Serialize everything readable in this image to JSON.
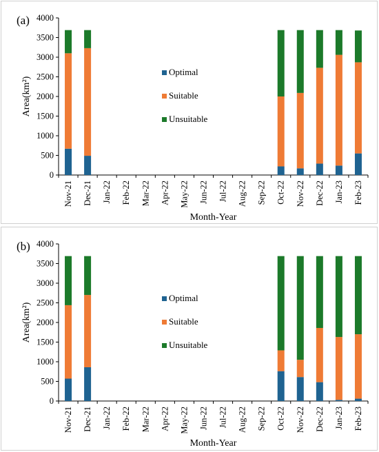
{
  "chart_data": [
    {
      "panel_label": "(a)",
      "type": "bar",
      "stacked": true,
      "categories": [
        "Nov-21",
        "Dec-21",
        "Jan-22",
        "Feb-22",
        "Mar-22",
        "Apr-22",
        "May-22",
        "Jun-22",
        "Jul-22",
        "Aug-22",
        "Sep-22",
        "Oct-22",
        "Nov-22",
        "Dec-22",
        "Jan-23",
        "Feb-23"
      ],
      "series": [
        {
          "name": "Optimal",
          "color": "#1f6391",
          "values": [
            670,
            490,
            0,
            0,
            0,
            0,
            0,
            0,
            0,
            0,
            0,
            220,
            170,
            290,
            240,
            550
          ]
        },
        {
          "name": "Suitable",
          "color": "#ef7b35",
          "values": [
            2430,
            2740,
            0,
            0,
            0,
            0,
            0,
            0,
            0,
            0,
            0,
            1780,
            1920,
            2440,
            2820,
            2320
          ]
        },
        {
          "name": "Unsuitable",
          "color": "#1c7a2a",
          "values": [
            590,
            460,
            0,
            0,
            0,
            0,
            0,
            0,
            0,
            0,
            0,
            1690,
            1600,
            960,
            630,
            810
          ]
        }
      ],
      "xlabel": "Month-Year",
      "ylabel": "Area(km²)",
      "ylim": [
        0,
        4000
      ],
      "yticks": [
        "0",
        "500",
        "1000",
        "1500",
        "2000",
        "2500",
        "3000",
        "3500",
        "4000"
      ],
      "grid": false,
      "legend_position": "center-left"
    },
    {
      "panel_label": "(b)",
      "type": "bar",
      "stacked": true,
      "categories": [
        "Nov-21",
        "Dec-21",
        "Jan-22",
        "Feb-22",
        "Mar-22",
        "Apr-22",
        "May-22",
        "Jun-22",
        "Jul-22",
        "Aug-22",
        "Sep-22",
        "Oct-22",
        "Nov-22",
        "Dec-22",
        "Jan-23",
        "Feb-23"
      ],
      "series": [
        {
          "name": "Optimal",
          "color": "#1f6391",
          "values": [
            570,
            860,
            0,
            0,
            0,
            0,
            0,
            0,
            0,
            0,
            0,
            760,
            610,
            480,
            30,
            60
          ]
        },
        {
          "name": "Suitable",
          "color": "#ef7b35",
          "values": [
            1870,
            1840,
            0,
            0,
            0,
            0,
            0,
            0,
            0,
            0,
            0,
            530,
            440,
            1380,
            1600,
            1640
          ]
        },
        {
          "name": "Unsuitable",
          "color": "#1c7a2a",
          "values": [
            1250,
            990,
            0,
            0,
            0,
            0,
            0,
            0,
            0,
            0,
            0,
            2400,
            2640,
            1830,
            2060,
            1990
          ]
        }
      ],
      "xlabel": "Month-Year",
      "ylabel": "Area(km²)",
      "ylim": [
        0,
        4000
      ],
      "yticks": [
        "0",
        "500",
        "1000",
        "1500",
        "2000",
        "2500",
        "3000",
        "3500",
        "4000"
      ],
      "grid": false,
      "legend_position": "center-left"
    }
  ]
}
